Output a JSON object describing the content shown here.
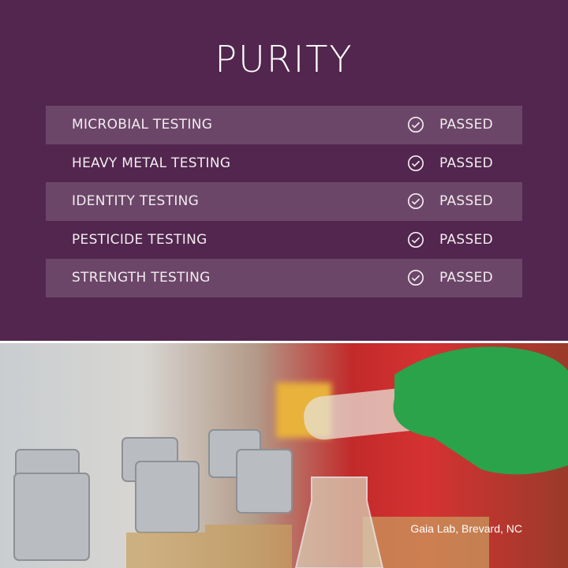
{
  "title": "PURITY",
  "tests": [
    {
      "name": "MICROBIAL TESTING",
      "status": "PASSED",
      "icon": "check-circle-icon"
    },
    {
      "name": "HEAVY METAL TESTING",
      "status": "PASSED",
      "icon": "check-circle-icon"
    },
    {
      "name": "IDENTITY TESTING",
      "status": "PASSED",
      "icon": "check-circle-icon"
    },
    {
      "name": "PESTICIDE TESTING",
      "status": "PASSED",
      "icon": "check-circle-icon"
    },
    {
      "name": "STRENGTH TESTING",
      "status": "PASSED",
      "icon": "check-circle-icon"
    }
  ],
  "photo": {
    "caption": "Gaia Lab, Brevard, NC"
  },
  "colors": {
    "background": "#52264e",
    "row_stripe": "#6c4668",
    "text": "#f2ecf0"
  }
}
